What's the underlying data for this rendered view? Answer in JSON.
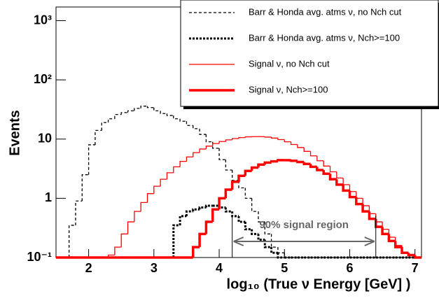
{
  "chart_data": {
    "type": "histogram",
    "y_label": "Events",
    "x_label": "log₁₀ (True ν Energy [GeV] )",
    "log_y": true,
    "xlim": [
      1.5,
      7.1
    ],
    "ylim": [
      0.1,
      1700
    ],
    "xticks": [
      2,
      3,
      4,
      5,
      6,
      7
    ],
    "yticks": [
      {
        "value": 0.1,
        "label": "10⁻¹"
      },
      1,
      10,
      {
        "value": 100,
        "label": "10²"
      },
      {
        "value": 1000,
        "label": "10³"
      }
    ],
    "legend": "top-right",
    "bins": [
      1.5,
      1.6,
      1.7,
      1.8,
      1.9,
      2.0,
      2.1,
      2.2,
      2.3,
      2.4,
      2.5,
      2.6,
      2.7,
      2.8,
      2.9,
      3.0,
      3.1,
      3.2,
      3.3,
      3.4,
      3.5,
      3.6,
      3.7,
      3.8,
      3.9,
      4.0,
      4.1,
      4.2,
      4.3,
      4.4,
      4.5,
      4.6,
      4.7,
      4.8,
      4.9,
      5.0,
      5.1,
      5.2,
      5.3,
      5.4,
      5.5,
      5.6,
      5.7,
      5.8,
      5.9,
      6.0,
      6.1,
      6.2,
      6.3,
      6.4,
      6.5,
      6.6,
      6.7,
      6.8,
      6.9,
      7.0,
      7.1
    ],
    "series": [
      {
        "name": "Barr & Honda avg. atms ν, no Nch cut",
        "color": "#000000",
        "width": 1.3,
        "line_style": "dashed",
        "values": [
          0,
          0,
          0.35,
          0.9,
          2.5,
          8,
          14,
          19,
          22,
          26,
          28,
          30,
          33,
          36,
          34,
          30,
          27,
          25,
          22,
          20,
          17,
          15,
          12,
          9,
          7,
          4.5,
          3,
          2,
          1.5,
          1,
          0.6,
          0.4,
          0.25,
          0.15,
          0.12,
          0,
          0,
          0,
          0,
          0,
          0,
          0,
          0,
          0,
          0,
          0,
          0,
          0,
          0,
          0,
          0,
          0,
          0,
          0,
          0,
          0
        ]
      },
      {
        "name": "Barr & Honda avg. atms ν, Nch>=100",
        "color": "#000000",
        "width": 3,
        "line_style": "dotted",
        "values": [
          0,
          0,
          0,
          0,
          0,
          0,
          0,
          0,
          0,
          0,
          0,
          0,
          0,
          0,
          0,
          0,
          0,
          0,
          0.35,
          0.5,
          0.6,
          0.65,
          0.7,
          0.75,
          0.75,
          0.7,
          0.6,
          0.5,
          0.4,
          0.3,
          0.25,
          0.2,
          0.15,
          0.12,
          0,
          0,
          0,
          0,
          0,
          0,
          0,
          0,
          0,
          0,
          0,
          0,
          0,
          0,
          0,
          0,
          0,
          0,
          0,
          0,
          0,
          0
        ]
      },
      {
        "name": "Signal ν, no Nch cut",
        "color": "#ff0000",
        "width": 1.3,
        "line_style": "solid",
        "values": [
          0,
          0,
          0,
          0,
          0,
          0,
          0,
          0,
          0.11,
          0.15,
          0.25,
          0.4,
          0.6,
          0.85,
          1.2,
          1.6,
          2.1,
          2.7,
          3.4,
          4.2,
          5,
          5.9,
          6.8,
          7.6,
          8.4,
          9.1,
          9.7,
          10.2,
          10.6,
          10.9,
          11,
          11,
          10.8,
          10.4,
          9.8,
          9,
          8.1,
          7.2,
          6.2,
          5.2,
          4.3,
          3.5,
          2.8,
          2.2,
          1.7,
          1.3,
          1,
          0.75,
          0.55,
          0.4,
          0.3,
          0.22,
          0.16,
          0.12,
          0.11,
          0
        ]
      },
      {
        "name": "Signal ν, Nch>=100",
        "color": "#ff0000",
        "width": 3.5,
        "line_style": "solid",
        "values": [
          0,
          0,
          0,
          0,
          0,
          0,
          0,
          0,
          0,
          0,
          0,
          0,
          0,
          0,
          0,
          0,
          0,
          0,
          0,
          0,
          0,
          0.15,
          0.25,
          0.4,
          0.65,
          1,
          1.4,
          1.9,
          2.4,
          2.9,
          3.3,
          3.7,
          4,
          4.2,
          4.4,
          4.4,
          4.3,
          4.1,
          3.8,
          3.4,
          3,
          2.6,
          2.1,
          1.7,
          1.35,
          1.05,
          0.8,
          0.6,
          0.45,
          0.33,
          0.25,
          0.19,
          0.15,
          0.12,
          0.11,
          0
        ]
      }
    ],
    "annotation": {
      "text": "90% signal region",
      "x": [
        4.2,
        6.4
      ],
      "color": "#666666"
    }
  }
}
